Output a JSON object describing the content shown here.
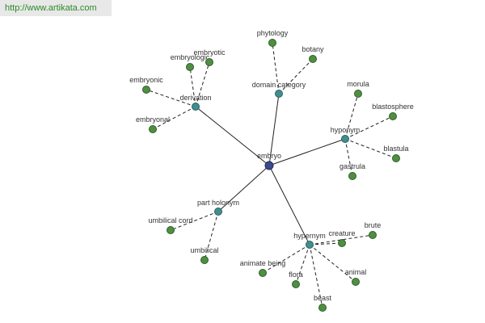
{
  "watermark": "http://www.artikata.com",
  "center": "embryo",
  "relations": [
    {
      "label": "derivation",
      "terms": [
        "embryologic",
        "embryotic",
        "embryonic",
        "embryonal"
      ]
    },
    {
      "label": "domain category",
      "terms": [
        "phytology",
        "botany"
      ]
    },
    {
      "label": "hyponym",
      "terms": [
        "morula",
        "blastosphere",
        "blastula",
        "gastrula"
      ]
    },
    {
      "label": "part holonym",
      "terms": [
        "umbilical cord",
        "umbilical"
      ]
    },
    {
      "label": "hypernym",
      "terms": [
        "creature",
        "brute",
        "animate being",
        "flora",
        "animal",
        "beast"
      ]
    }
  ]
}
